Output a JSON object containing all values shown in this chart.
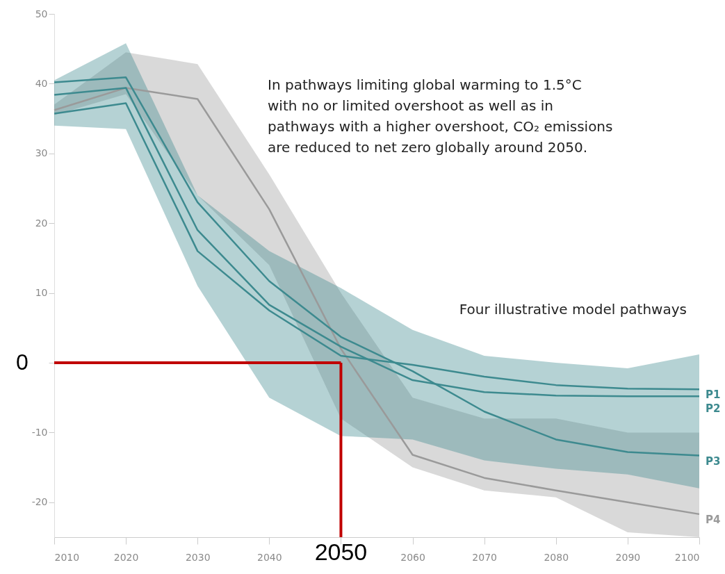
{
  "chart_data": {
    "type": "line",
    "x": [
      2010,
      2020,
      2030,
      2040,
      2050,
      2060,
      2070,
      2080,
      2090,
      2100
    ],
    "series": [
      {
        "name": "P4",
        "color": "#9a9a9a",
        "values": [
          36.2,
          39.4,
          37.8,
          22,
          2,
          -13.2,
          -16.5,
          -18.3,
          -20,
          -21.7
        ],
        "lower": [
          35.5,
          38.5,
          24,
          14,
          -8,
          -15,
          -18.3,
          -19.3,
          -24.3,
          -25
        ],
        "upper": [
          37,
          44.5,
          42.8,
          27,
          10,
          -5,
          -8,
          -8,
          -10,
          -10
        ]
      },
      {
        "name": "P3",
        "color": "#3d8a8f",
        "values": [
          40.2,
          40.9,
          23,
          11.7,
          3.7,
          -1.2,
          -7,
          -11,
          -12.8,
          -13.3
        ],
        "lower": [
          34,
          33.5,
          11,
          -5,
          -10.5,
          -11,
          -14,
          -15.2,
          -16,
          -18
        ],
        "upper": [
          40.5,
          45.8,
          24,
          16,
          10.7,
          4.7,
          1.0,
          0,
          -0.8,
          1.2
        ]
      },
      {
        "name": "P2",
        "color": "#3d8a8f",
        "values": [
          38.4,
          39.4,
          19,
          8.3,
          2.3,
          -2.5,
          -4.2,
          -4.7,
          -4.8,
          -4.8
        ]
      },
      {
        "name": "P1",
        "color": "#3d8a8f",
        "values": [
          35.7,
          37.2,
          16,
          7.5,
          1.0,
          -0.3,
          -2.0,
          -3.2,
          -3.7,
          -3.8
        ]
      }
    ],
    "xlim": [
      2010,
      2100
    ],
    "xticks": [
      2010,
      2020,
      2030,
      2040,
      {
        "value": 2050,
        "label": null
      },
      2060,
      2070,
      2080,
      2090,
      2100
    ],
    "ylim": [
      -25,
      50
    ],
    "yticks": [
      -20,
      -10,
      {
        "value": 0,
        "label": null
      },
      10,
      20,
      30,
      40,
      50
    ],
    "ref_lines": [
      {
        "axis": "y",
        "value": 0,
        "label": "0",
        "color": "#c00000"
      },
      {
        "axis": "x",
        "value": 2050,
        "label": "2050",
        "color": "#c00000"
      }
    ],
    "annotations": [
      "In pathways limiting global warming to 1.5°C\nwith no or limited overshoot as well as in\npathways with a higher overshoot, CO₂ emissions\nare reduced to net zero globally around 2050.",
      "Four illustrative model pathways"
    ],
    "marker": "none",
    "line_style": "solid"
  }
}
